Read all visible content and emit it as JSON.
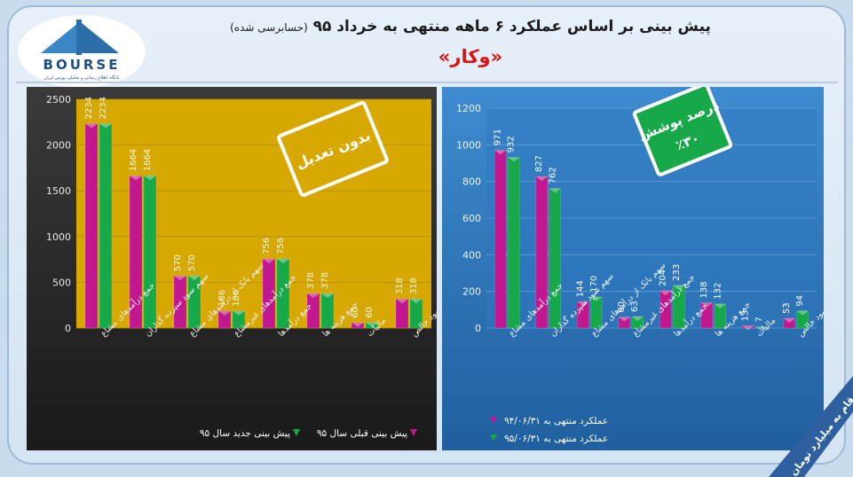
{
  "header": {
    "title_main": "پیش بینی بر اساس عملکرد ۶ ماهه منتهی به خرداد ۹۵",
    "title_sub": "(حسابرسی شده)",
    "company": "«وکار»",
    "logo_text": "BOURSE",
    "logo_subtext": "پایگاه اطلاع رسانی و تحلیلی بورس ایران"
  },
  "left_chart": {
    "badge": "بدون تعدیل",
    "chart_data": {
      "type": "bar",
      "categories": [
        "جمع درآمدهای مشاع",
        "سهم سود سپرده گذاران",
        "سهم بانک از درآمدهای مشاع",
        "جمع درآمدهای غیرمشاع",
        "جمع درآمدها",
        "جمع هزینه ها",
        "مالیات",
        "سود خالص"
      ],
      "series": [
        {
          "name": "پیش بینی قبلی سال ۹۵",
          "values": [
            2234,
            1664,
            570,
            186,
            756,
            378,
            60,
            318
          ],
          "color": "#c2188f"
        },
        {
          "name": "پیش بینی جدید سال ۹۵",
          "values": [
            2234,
            1664,
            570,
            186,
            756,
            378,
            60,
            318
          ],
          "color": "#17a84a"
        }
      ],
      "yticks": [
        0,
        500,
        1000,
        1500,
        2000,
        2500
      ],
      "ylim": [
        0,
        2500
      ],
      "legend_position": "bottom"
    }
  },
  "right_chart": {
    "badge_line1": "درصد پوشش",
    "badge_line2": "٪۳۰",
    "chart_data": {
      "type": "bar",
      "categories": [
        "جمع درآمدهای مشاع",
        "سهم سود سپرده گذاران",
        "سهم بانک از درآمدهای مشاع",
        "جمع درآمدهای غیرمشاع",
        "جمع درآمدها",
        "جمع هزینه ها",
        "مالیات",
        "سود خالص"
      ],
      "series": [
        {
          "name": "عملکرد منتهی به ۹۴/۰۶/۳۱",
          "values": [
            971,
            827,
            144,
            60,
            204,
            138,
            13,
            53
          ],
          "color": "#c2188f"
        },
        {
          "name": "عملکرد منتهی به ۹۵/۰۶/۳۱",
          "values": [
            932,
            762,
            170,
            63,
            233,
            132,
            7,
            94
          ],
          "color": "#17a84a"
        }
      ],
      "yticks": [
        0,
        200,
        400,
        600,
        800,
        1000,
        1200
      ],
      "ylim": [
        0,
        1200
      ],
      "legend_position": "bottom"
    }
  },
  "footer": {
    "unit_note": "ارقام به میلیارد تومان"
  }
}
